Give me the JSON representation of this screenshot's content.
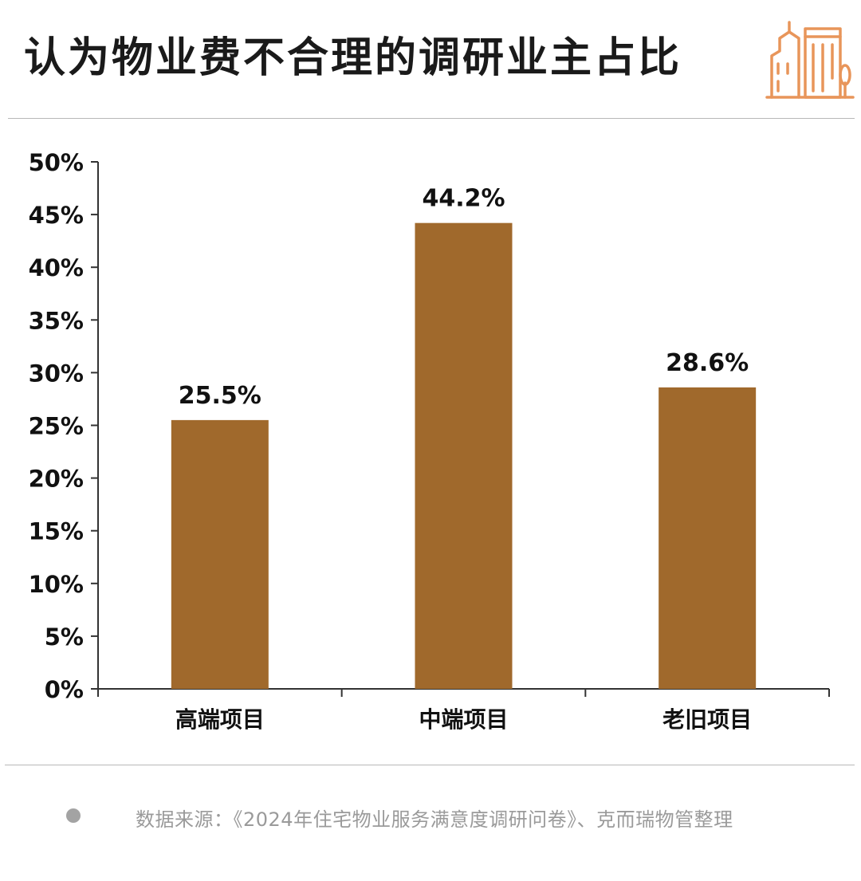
{
  "title": "认为物业费不合理的调研业主占比",
  "icons": {
    "header": "building-icon"
  },
  "colors": {
    "bar": "#A0692C",
    "icon": "#E8955A",
    "axis": "#333333",
    "source_dot": "#A3A3A3"
  },
  "chart_data": {
    "type": "bar",
    "categories": [
      "高端项目",
      "中端项目",
      "老旧项目"
    ],
    "values": [
      25.5,
      44.2,
      28.6
    ],
    "value_labels": [
      "25.5%",
      "44.2%",
      "28.6%"
    ],
    "ylim": [
      0,
      50
    ],
    "yticks": [
      0,
      5,
      10,
      15,
      20,
      25,
      30,
      35,
      40,
      45,
      50
    ],
    "ytick_labels": [
      "0%",
      "5%",
      "10%",
      "15%",
      "20%",
      "25%",
      "30%",
      "35%",
      "40%",
      "45%",
      "50%"
    ],
    "grid": false,
    "legend": "none"
  },
  "source": "数据来源：《2024年住宅物业服务满意度调研问卷》、克而瑞物管整理"
}
